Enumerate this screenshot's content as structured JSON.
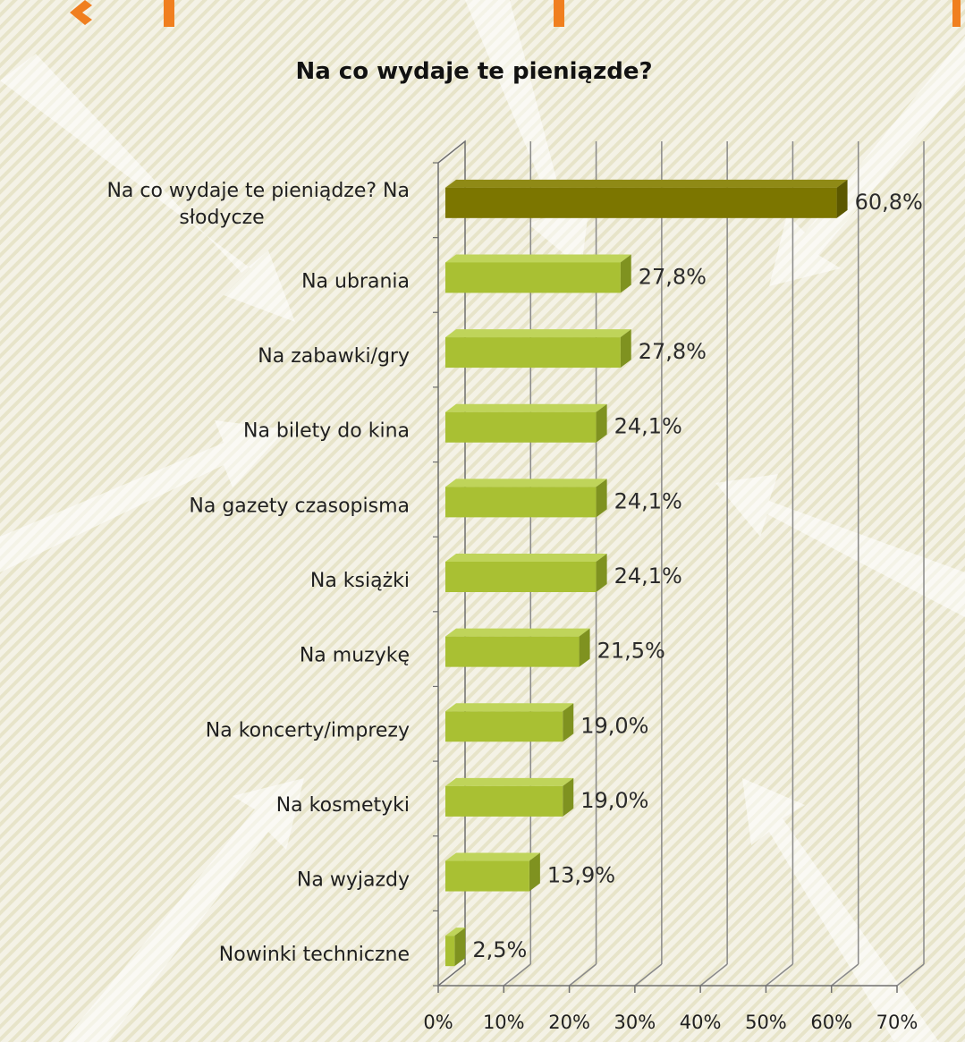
{
  "colors": {
    "background": "#f4f2e6",
    "stripe": "#e6e2c6",
    "arrow": "#ffffff",
    "accent_orange": "#f07f1f",
    "bar_highlight": "#7c7600",
    "bar_highlight_top": "#8f8a16",
    "bar_highlight_side": "#5c5800",
    "bar_normal": "#a9c033",
    "bar_normal_top": "#bfd45a",
    "bar_normal_side": "#7f9220",
    "gridline": "#8a8a8a",
    "axis": "#6f6f6f"
  },
  "chart_data": {
    "type": "bar",
    "orientation": "horizontal",
    "title": "Na co wydaje te pieniązde?",
    "categories": [
      [
        "Na co wydaje te pieniądze? Na",
        "słodycze"
      ],
      [
        "Na ubrania"
      ],
      [
        "Na zabawki/gry"
      ],
      [
        "Na bilety do kina"
      ],
      [
        "Na gazety czasopisma"
      ],
      [
        "Na książki"
      ],
      [
        "Na muzykę"
      ],
      [
        "Na koncerty/imprezy"
      ],
      [
        "Na kosmetyki"
      ],
      [
        "Na wyjazdy"
      ],
      [
        "Nowinki techniczne"
      ]
    ],
    "values": [
      60.8,
      27.8,
      27.8,
      24.1,
      24.1,
      24.1,
      21.5,
      19.0,
      19.0,
      13.9,
      2.5
    ],
    "value_labels": [
      "60,8%",
      "27,8%",
      "27,8%",
      "24,1%",
      "24,1%",
      "24,1%",
      "21,5%",
      "19,0%",
      "19,0%",
      "13,9%",
      "2,5%"
    ],
    "highlight_index": 0,
    "xlim": [
      0,
      70
    ],
    "x_ticks": [
      0,
      10,
      20,
      30,
      40,
      50,
      60,
      70
    ],
    "x_tick_labels": [
      "0%",
      "10%",
      "20%",
      "30%",
      "40%",
      "50%",
      "60%",
      "70%"
    ],
    "grid": true,
    "style": "3d",
    "legend": "none"
  }
}
